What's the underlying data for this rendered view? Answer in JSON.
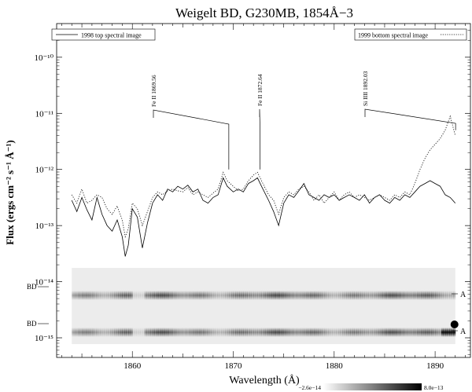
{
  "chart_data": {
    "type": "line",
    "title": "Weigelt BD, G230MB, 1854Å−3",
    "xlabel": "Wavelength (Å)",
    "ylabel": "Flux (ergs cm⁻² s⁻¹ Å⁻¹)",
    "xlim": [
      1852.5,
      1893.5
    ],
    "ylim_log10": [
      -15.35,
      -9.4
    ],
    "yscale": "log",
    "x_ticks": [
      1860,
      1870,
      1880,
      1890
    ],
    "x_tick_labels": [
      "1860",
      "1870",
      "1880",
      "1890"
    ],
    "y_ticks_log10": [
      -10,
      -11,
      -12,
      -13,
      -14,
      -15
    ],
    "y_tick_labels": [
      "10⁻¹⁰",
      "10⁻¹¹",
      "10⁻¹²",
      "10⁻¹³",
      "10⁻¹⁴",
      "10⁻¹⁵"
    ],
    "legend": [
      {
        "name": "1998 top spectral image",
        "style": "solid",
        "position": "top-left"
      },
      {
        "name": "1999 bottom spectral image",
        "style": "dotted",
        "position": "top-right"
      }
    ],
    "series": [
      {
        "name": "1998 top spectral image",
        "style": "solid",
        "x": [
          1854.0,
          1854.5,
          1855.0,
          1855.5,
          1856.0,
          1856.5,
          1857.0,
          1857.5,
          1858.0,
          1858.5,
          1859.0,
          1859.3,
          1859.6,
          1860.0,
          1860.5,
          1861.0,
          1861.5,
          1862.0,
          1862.5,
          1863.0,
          1863.5,
          1864.0,
          1864.5,
          1865.0,
          1865.5,
          1866.0,
          1866.5,
          1867.0,
          1867.5,
          1868.0,
          1868.5,
          1869.0,
          1869.4,
          1870.0,
          1870.5,
          1871.0,
          1871.5,
          1872.0,
          1872.4,
          1872.8,
          1873.5,
          1874.0,
          1874.5,
          1875.0,
          1875.5,
          1876.0,
          1876.5,
          1877.0,
          1877.5,
          1878.0,
          1878.5,
          1879.0,
          1879.5,
          1880.0,
          1880.5,
          1881.0,
          1881.5,
          1882.0,
          1882.5,
          1883.0,
          1883.5,
          1884.0,
          1884.5,
          1885.0,
          1885.5,
          1886.0,
          1886.5,
          1887.0,
          1887.5,
          1888.0,
          1888.5,
          1889.0,
          1889.5,
          1890.0,
          1890.5,
          1891.0,
          1891.5,
          1892.0
        ],
        "y_log10": [
          -12.55,
          -12.75,
          -12.5,
          -12.72,
          -12.9,
          -12.5,
          -12.8,
          -13.0,
          -13.1,
          -12.9,
          -13.2,
          -13.55,
          -13.35,
          -12.7,
          -12.85,
          -13.4,
          -12.95,
          -12.6,
          -12.45,
          -12.55,
          -12.35,
          -12.4,
          -12.3,
          -12.35,
          -12.28,
          -12.4,
          -12.35,
          -12.55,
          -12.6,
          -12.5,
          -12.45,
          -12.15,
          -12.3,
          -12.4,
          -12.35,
          -12.4,
          -12.25,
          -12.2,
          -12.15,
          -12.3,
          -12.55,
          -12.75,
          -13.0,
          -12.6,
          -12.45,
          -12.5,
          -12.38,
          -12.25,
          -12.45,
          -12.5,
          -12.55,
          -12.45,
          -12.5,
          -12.45,
          -12.55,
          -12.5,
          -12.45,
          -12.5,
          -12.55,
          -12.45,
          -12.6,
          -12.5,
          -12.45,
          -12.55,
          -12.6,
          -12.5,
          -12.55,
          -12.45,
          -12.5,
          -12.4,
          -12.3,
          -12.25,
          -12.2,
          -12.25,
          -12.3,
          -12.45,
          -12.5,
          -12.6
        ]
      },
      {
        "name": "1999 bottom spectral image",
        "style": "dotted",
        "x": [
          1854.0,
          1854.5,
          1855.0,
          1855.5,
          1856.0,
          1856.5,
          1857.0,
          1857.5,
          1858.0,
          1858.5,
          1859.0,
          1859.3,
          1859.6,
          1860.0,
          1860.5,
          1861.0,
          1861.5,
          1862.0,
          1862.5,
          1863.0,
          1863.5,
          1864.0,
          1864.5,
          1865.0,
          1865.5,
          1866.0,
          1866.5,
          1867.0,
          1867.5,
          1868.0,
          1868.5,
          1869.0,
          1869.4,
          1870.0,
          1870.5,
          1871.0,
          1871.5,
          1872.0,
          1872.4,
          1872.8,
          1873.5,
          1874.0,
          1874.5,
          1875.0,
          1875.5,
          1876.0,
          1876.5,
          1877.0,
          1877.5,
          1878.0,
          1878.5,
          1879.0,
          1879.5,
          1880.0,
          1880.5,
          1881.0,
          1881.5,
          1882.0,
          1882.5,
          1883.0,
          1883.5,
          1884.0,
          1884.5,
          1885.0,
          1885.5,
          1886.0,
          1886.5,
          1887.0,
          1887.5,
          1888.0,
          1888.5,
          1889.0,
          1889.5,
          1890.0,
          1890.5,
          1891.0,
          1891.5,
          1892.0
        ],
        "y_log10": [
          -12.45,
          -12.6,
          -12.35,
          -12.6,
          -12.55,
          -12.45,
          -12.5,
          -12.7,
          -12.8,
          -12.65,
          -12.9,
          -13.2,
          -13.05,
          -12.6,
          -12.7,
          -13.0,
          -12.75,
          -12.5,
          -12.4,
          -12.45,
          -12.38,
          -12.35,
          -12.38,
          -12.4,
          -12.32,
          -12.45,
          -12.4,
          -12.45,
          -12.5,
          -12.42,
          -12.35,
          -12.05,
          -12.2,
          -12.3,
          -12.38,
          -12.35,
          -12.2,
          -12.1,
          -12.05,
          -12.2,
          -12.45,
          -12.55,
          -12.8,
          -12.5,
          -12.4,
          -12.45,
          -12.35,
          -12.3,
          -12.4,
          -12.55,
          -12.45,
          -12.6,
          -12.5,
          -12.4,
          -12.55,
          -12.45,
          -12.4,
          -12.5,
          -12.45,
          -12.5,
          -12.55,
          -12.5,
          -12.45,
          -12.5,
          -12.55,
          -12.45,
          -12.5,
          -12.4,
          -12.45,
          -12.25,
          -12.0,
          -11.8,
          -11.65,
          -11.55,
          -11.45,
          -11.3,
          -11.05,
          -11.4
        ]
      }
    ],
    "annotations": [
      {
        "text": "Fe II 1869.56",
        "x": 1869.56,
        "end_log10": -12.0
      },
      {
        "text": "Fe II 1872.64",
        "x": 1872.64,
        "end_log10": -12.0
      },
      {
        "text": "Si IIII 1892.03",
        "x": 1892.03,
        "end_log10": -11.3
      }
    ],
    "spectral_image": {
      "x_range": [
        1854.0,
        1892.0
      ],
      "rows": [
        {
          "left_label": "BD",
          "right_label": "A"
        },
        {
          "left_label": "BD",
          "right_label": "A"
        }
      ]
    },
    "colorbar": {
      "min_label": "−2.6e−14",
      "max_label": "8.0e−13"
    }
  }
}
